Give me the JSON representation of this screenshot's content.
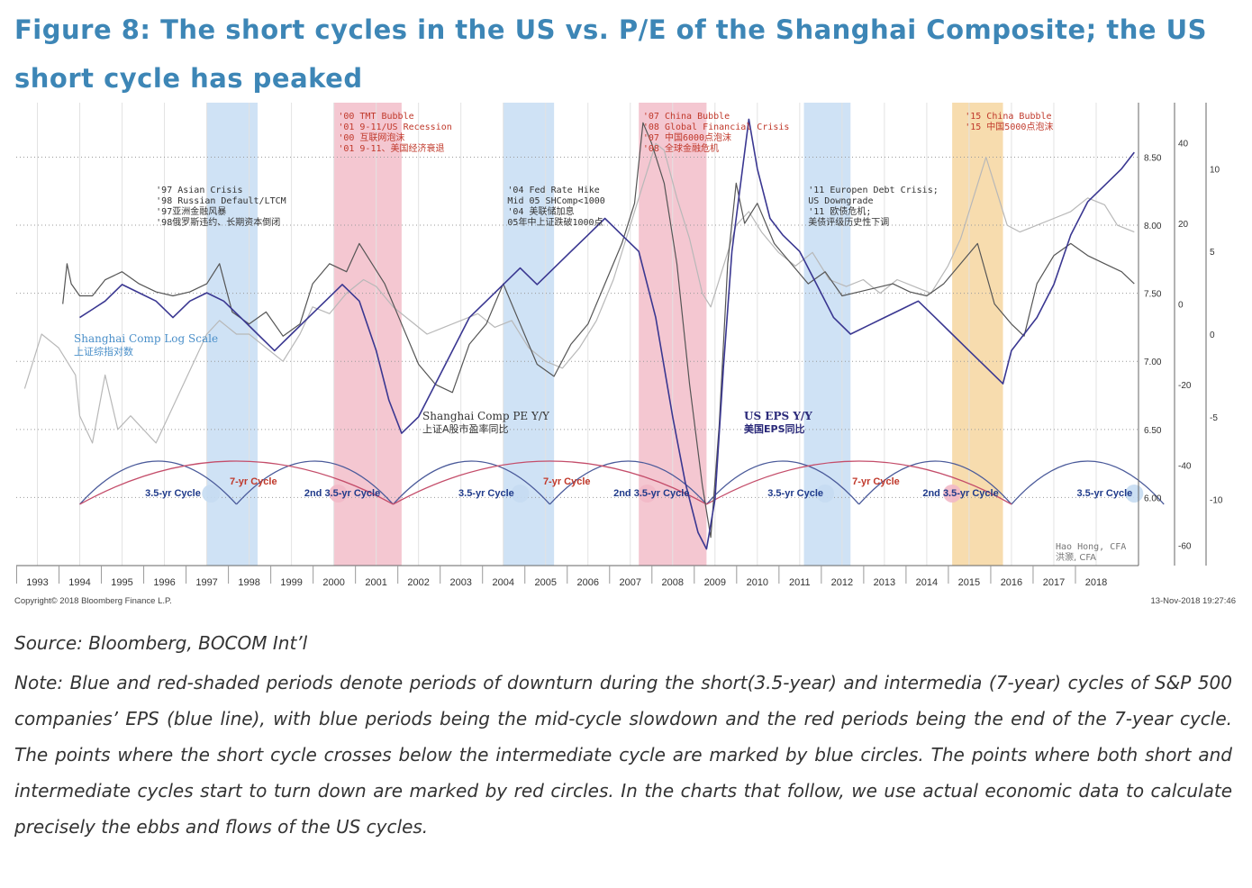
{
  "page": {
    "title": "Figure 8: The short cycles in the US vs. P/E of the Shanghai Composite; the US short cycle has peaked",
    "source": "Source: Bloomberg, BOCOM Int’l",
    "note": "Note: Blue and red-shaded periods denote periods of downturn during the short(3.5-year) and intermedia (7-year) cycles of S&P 500 companies’ EPS (blue line), with blue periods being the mid-cycle slowdown and the red periods being the end of the 7-year cycle. The points where the short cycle crosses below the intermediate cycle are marked by blue circles. The points where both short and intermediate cycles start to turn down are marked by red circles. In the charts that follow, we use actual economic data to calculate precisely the ebbs and flows of the US cycles."
  },
  "colors": {
    "title": "#3d86b6",
    "blue_shade": "#cfe2f5",
    "red_shade": "#f4c7d1",
    "orange_shade": "#f7dcae",
    "shanghai_log": "#b8b8b8",
    "shanghai_pe": "#555555",
    "us_eps": "#3a3791",
    "short_cycle_arc": "#4a5a9a",
    "long_cycle_arc": "#c44d6a",
    "cycle_label": "#1f3a8a",
    "cycle_label_red": "#c0392b",
    "event_red": "#c0392b",
    "blue_circle": "#c5dbf2",
    "red_circle": "#f2b8c6"
  },
  "chart_data": {
    "type": "line",
    "x_years": [
      "1993",
      "1994",
      "1995",
      "1996",
      "1997",
      "1998",
      "1999",
      "2000",
      "2001",
      "2002",
      "2003",
      "2004",
      "2005",
      "2006",
      "2007",
      "2008",
      "2009",
      "2010",
      "2011",
      "2012",
      "2013",
      "2014",
      "2015",
      "2016",
      "2017",
      "2018"
    ],
    "xlim": [
      1992.5,
      2019.0
    ],
    "right_axis_log_ticks": [
      "8.50",
      "8.00",
      "7.50",
      "7.00",
      "6.50",
      "6.00"
    ],
    "right_axis_log_range": [
      5.5,
      8.9
    ],
    "right_axis_pe_ticks": [
      "40",
      "20",
      "0",
      "-20",
      "-40",
      "-60"
    ],
    "right_axis_pe_range": [
      -65,
      50
    ],
    "right_axis_eps_ticks": [
      "10",
      "5",
      "0",
      "-5",
      "-10"
    ],
    "right_axis_eps_range": [
      -14,
      14
    ],
    "shaded_periods": [
      {
        "start": 1997.0,
        "end": 1998.2,
        "kind": "blue"
      },
      {
        "start": 2000.0,
        "end": 2001.6,
        "kind": "red"
      },
      {
        "start": 2004.0,
        "end": 2005.2,
        "kind": "blue"
      },
      {
        "start": 2007.2,
        "end": 2008.8,
        "kind": "red"
      },
      {
        "start": 2011.1,
        "end": 2012.2,
        "kind": "blue"
      },
      {
        "start": 2014.6,
        "end": 2015.8,
        "kind": "orange"
      }
    ],
    "short_cycle_troughs": [
      1994.0,
      1997.7,
      2001.4,
      2005.1,
      2008.8,
      2012.4,
      2016.0,
      2019.6
    ],
    "long_cycle_troughs": [
      1994.0,
      2001.4,
      2008.8,
      2016.0
    ],
    "blue_circles": [
      1997.1,
      2004.4,
      2011.6,
      2018.9
    ],
    "red_circles": [
      2000.1,
      2007.4,
      2014.6
    ],
    "cycle_labels": [
      {
        "x": 1996.2,
        "text": "3.5-yr Cycle",
        "red": false,
        "level": 0
      },
      {
        "x": 1998.1,
        "text": "7-yr Cycle",
        "red": true,
        "level": 1
      },
      {
        "x": 2000.2,
        "text": "2nd 3.5-yr Cycle",
        "red": false,
        "level": 0
      },
      {
        "x": 2003.6,
        "text": "3.5-yr Cycle",
        "red": false,
        "level": 0
      },
      {
        "x": 2005.5,
        "text": "7-yr Cycle",
        "red": true,
        "level": 1
      },
      {
        "x": 2007.5,
        "text": "2nd 3.5-yr Cycle",
        "red": false,
        "level": 0
      },
      {
        "x": 2010.9,
        "text": "3.5-yr Cycle",
        "red": false,
        "level": 0
      },
      {
        "x": 2012.8,
        "text": "7-yr Cycle",
        "red": true,
        "level": 1
      },
      {
        "x": 2014.8,
        "text": "2nd 3.5-yr Cycle",
        "red": false,
        "level": 0
      },
      {
        "x": 2018.2,
        "text": "3.5-yr Cycle",
        "red": false,
        "level": 0
      }
    ],
    "annotations": [
      {
        "x": 1995.8,
        "lines": [
          "'97 Asian Crisis",
          "'98 Russian Default/LTCM",
          "'97亚洲金融风暴",
          "'98俄罗斯违约、长期资本倒闭"
        ],
        "red": false,
        "row": "mid"
      },
      {
        "x": 2000.1,
        "lines": [
          "'00 TMT Bubble",
          "'01 9-11/US Recession",
          "'00 互联网泡沫",
          "'01 9-11、美国经济衰退"
        ],
        "red": true,
        "row": "top"
      },
      {
        "x": 2004.1,
        "lines": [
          "'04 Fed Rate Hike",
          "Mid 05 SHComp<1000",
          "'04 美联储加息",
          "05年中上证跌破1000点"
        ],
        "red": false,
        "row": "mid"
      },
      {
        "x": 2007.3,
        "lines": [
          "'07 China Bubble",
          "'08 Global Financial Crisis",
          "'07 中国6000点泡沫",
          "'08 全球金融危机"
        ],
        "red": true,
        "row": "top"
      },
      {
        "x": 2011.2,
        "lines": [
          "'11 Europen Debt Crisis;",
          "US Downgrade",
          "'11 欧债危机;",
          "美债评级历史性下调"
        ],
        "red": false,
        "row": "mid"
      },
      {
        "x": 2014.9,
        "lines": [
          "'15 China Bubble",
          "'15 中国5000点泡沫"
        ],
        "red": true,
        "row": "top"
      }
    ],
    "series_labels": [
      {
        "name_en": "Shanghai Comp Log Scale",
        "name_cn": "上证综指对数"
      },
      {
        "name_en": "Shanghai Comp PE Y/Y",
        "name_cn": "上证A股市盈率同比"
      },
      {
        "name_en": "US EPS Y/Y",
        "name_cn": "美国EPS同比"
      }
    ],
    "author": [
      "Hao Hong, CFA",
      "洪灏, CFA"
    ],
    "copyright": "Copyright© 2018 Bloomberg Finance L.P.",
    "timestamp": "13-Nov-2018 19:27:46",
    "series": [
      {
        "key": "shanghai_log",
        "axis": "log",
        "x": [
          1992.7,
          1993.1,
          1993.5,
          1993.9,
          1994.0,
          1994.3,
          1994.6,
          1994.9,
          1995.2,
          1995.5,
          1995.8,
          1996.1,
          1996.4,
          1996.7,
          1997.0,
          1997.3,
          1997.7,
          1998.0,
          1998.4,
          1998.8,
          1999.2,
          1999.5,
          1999.9,
          2000.3,
          2000.7,
          2001.0,
          2001.4,
          2001.8,
          2002.2,
          2002.6,
          2003.0,
          2003.4,
          2003.8,
          2004.2,
          2004.6,
          2005.0,
          2005.4,
          2005.8,
          2006.2,
          2006.6,
          2007.0,
          2007.3,
          2007.6,
          2007.8,
          2008.1,
          2008.4,
          2008.7,
          2008.9,
          2009.2,
          2009.5,
          2009.8,
          2010.1,
          2010.5,
          2010.9,
          2011.3,
          2011.7,
          2012.1,
          2012.5,
          2012.9,
          2013.3,
          2013.7,
          2014.1,
          2014.5,
          2014.8,
          2015.1,
          2015.4,
          2015.6,
          2015.9,
          2016.2,
          2016.6,
          2017.0,
          2017.4,
          2017.8,
          2018.2,
          2018.5,
          2018.9
        ],
        "y": [
          6.8,
          7.2,
          7.1,
          6.9,
          6.6,
          6.4,
          6.9,
          6.5,
          6.6,
          6.5,
          6.4,
          6.6,
          6.8,
          7.0,
          7.2,
          7.3,
          7.2,
          7.2,
          7.1,
          7.0,
          7.2,
          7.4,
          7.35,
          7.5,
          7.6,
          7.55,
          7.4,
          7.3,
          7.2,
          7.25,
          7.3,
          7.35,
          7.25,
          7.3,
          7.1,
          7.0,
          6.95,
          7.1,
          7.3,
          7.6,
          8.0,
          8.3,
          8.6,
          8.55,
          8.2,
          7.9,
          7.5,
          7.4,
          7.7,
          8.0,
          8.1,
          7.95,
          7.8,
          7.7,
          7.8,
          7.6,
          7.55,
          7.6,
          7.5,
          7.6,
          7.55,
          7.5,
          7.7,
          7.9,
          8.2,
          8.5,
          8.3,
          8.0,
          7.95,
          8.0,
          8.05,
          8.1,
          8.2,
          8.15,
          8.0,
          7.95
        ]
      },
      {
        "key": "shanghai_pe",
        "axis": "pe",
        "x": [
          1993.6,
          1993.7,
          1993.8,
          1994.0,
          1994.3,
          1994.6,
          1995.0,
          1995.4,
          1995.8,
          1996.2,
          1996.6,
          1997.0,
          1997.3,
          1997.6,
          1998.0,
          1998.4,
          1998.8,
          1999.2,
          1999.5,
          1999.9,
          2000.3,
          2000.6,
          2000.9,
          2001.2,
          2001.6,
          2002.0,
          2002.4,
          2002.8,
          2003.2,
          2003.6,
          2004.0,
          2004.4,
          2004.8,
          2005.2,
          2005.6,
          2006.0,
          2006.4,
          2006.8,
          2007.1,
          2007.3,
          2007.5,
          2007.8,
          2008.1,
          2008.4,
          2008.7,
          2008.9,
          2009.1,
          2009.3,
          2009.5,
          2009.7,
          2010.0,
          2010.4,
          2010.8,
          2011.2,
          2011.6,
          2012.0,
          2012.4,
          2012.8,
          2013.2,
          2013.6,
          2014.0,
          2014.4,
          2014.8,
          2015.2,
          2015.6,
          2016.0,
          2016.3,
          2016.6,
          2017.0,
          2017.4,
          2017.8,
          2018.2,
          2018.6,
          2018.9
        ],
        "y": [
          0,
          10,
          5,
          2,
          2,
          6,
          8,
          5,
          3,
          2,
          3,
          5,
          10,
          -2,
          -5,
          -2,
          -8,
          -5,
          5,
          10,
          8,
          15,
          10,
          5,
          -5,
          -15,
          -20,
          -22,
          -10,
          -5,
          5,
          -5,
          -15,
          -18,
          -10,
          -5,
          5,
          15,
          25,
          45,
          40,
          30,
          10,
          -20,
          -45,
          -58,
          -30,
          10,
          30,
          20,
          25,
          15,
          10,
          5,
          8,
          2,
          3,
          4,
          5,
          3,
          2,
          5,
          10,
          15,
          0,
          -5,
          -8,
          5,
          12,
          15,
          12,
          10,
          8,
          5
        ]
      },
      {
        "key": "us_eps",
        "axis": "eps",
        "x": [
          1994.0,
          1994.3,
          1994.6,
          1995.0,
          1995.4,
          1995.8,
          1996.2,
          1996.6,
          1997.0,
          1997.4,
          1997.8,
          1998.2,
          1998.6,
          1999.0,
          1999.4,
          1999.8,
          2000.2,
          2000.6,
          2001.0,
          2001.3,
          2001.6,
          2002.0,
          2002.4,
          2002.8,
          2003.2,
          2003.6,
          2004.0,
          2004.4,
          2004.8,
          2005.2,
          2005.6,
          2006.0,
          2006.4,
          2006.8,
          2007.2,
          2007.6,
          2008.0,
          2008.3,
          2008.6,
          2008.8,
          2009.0,
          2009.2,
          2009.4,
          2009.6,
          2009.8,
          2010.0,
          2010.3,
          2010.6,
          2011.0,
          2011.4,
          2011.8,
          2012.2,
          2012.6,
          2013.0,
          2013.4,
          2013.8,
          2014.2,
          2014.6,
          2015.0,
          2015.4,
          2015.8,
          2016.0,
          2016.3,
          2016.6,
          2017.0,
          2017.4,
          2017.8,
          2018.2,
          2018.6,
          2018.9
        ],
        "y": [
          1,
          1.5,
          2,
          3,
          2.5,
          2,
          1,
          2,
          2.5,
          2,
          1,
          0,
          -1,
          0,
          1,
          2,
          3,
          2,
          -1,
          -4,
          -6,
          -5,
          -3,
          -1,
          1,
          2,
          3,
          4,
          3,
          4,
          5,
          6,
          7,
          6,
          5,
          1,
          -5,
          -9,
          -12,
          -13,
          -10,
          -2,
          5,
          9,
          13,
          10,
          7,
          6,
          5,
          3,
          1,
          0,
          0.5,
          1,
          1.5,
          2,
          1,
          0,
          -1,
          -2,
          -3,
          -1,
          0,
          1,
          3,
          6,
          8,
          9,
          10,
          11
        ]
      }
    ]
  }
}
